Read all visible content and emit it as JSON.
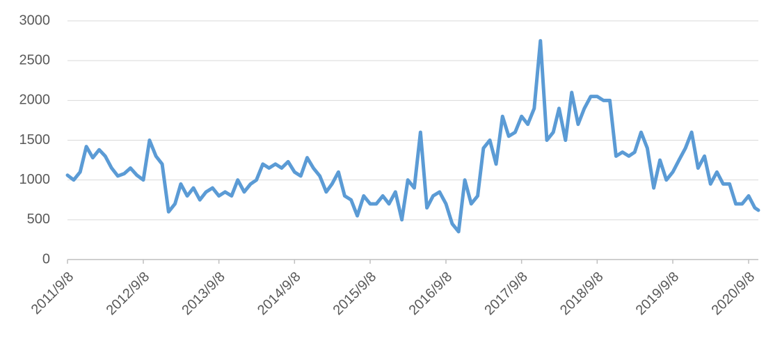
{
  "chart_data": {
    "type": "line",
    "x": [
      "2011/9/8",
      "2011/10/8",
      "2011/11/8",
      "2011/12/8",
      "2012/1/8",
      "2012/2/8",
      "2012/3/8",
      "2012/4/8",
      "2012/5/8",
      "2012/6/8",
      "2012/7/8",
      "2012/8/8",
      "2012/9/8",
      "2012/10/8",
      "2012/11/8",
      "2012/12/8",
      "2013/1/8",
      "2013/2/8",
      "2013/3/8",
      "2013/4/8",
      "2013/5/8",
      "2013/6/8",
      "2013/7/8",
      "2013/8/8",
      "2013/9/8",
      "2013/10/8",
      "2013/11/8",
      "2013/12/8",
      "2014/1/8",
      "2014/2/8",
      "2014/3/8",
      "2014/4/8",
      "2014/5/8",
      "2014/6/8",
      "2014/7/8",
      "2014/8/8",
      "2014/9/8",
      "2014/10/8",
      "2014/11/8",
      "2014/12/8",
      "2015/1/8",
      "2015/2/8",
      "2015/3/8",
      "2015/4/8",
      "2015/5/8",
      "2015/6/8",
      "2015/7/8",
      "2015/8/8",
      "2015/9/8",
      "2015/10/8",
      "2015/11/8",
      "2015/12/8",
      "2016/1/8",
      "2016/2/8",
      "2016/3/8",
      "2016/4/8",
      "2016/5/8",
      "2016/6/8",
      "2016/7/8",
      "2016/8/8",
      "2016/9/8",
      "2016/10/8",
      "2016/11/8",
      "2016/12/8",
      "2017/1/8",
      "2017/2/8",
      "2017/3/8",
      "2017/4/8",
      "2017/5/8",
      "2017/6/8",
      "2017/7/8",
      "2017/8/8",
      "2017/9/8",
      "2017/10/8",
      "2017/11/8",
      "2017/12/8",
      "2018/1/8",
      "2018/2/8",
      "2018/3/8",
      "2018/4/8",
      "2018/5/8",
      "2018/6/8",
      "2018/7/8",
      "2018/8/8",
      "2018/9/8",
      "2018/10/8",
      "2018/11/8",
      "2018/12/8",
      "2019/1/8",
      "2019/2/8",
      "2019/3/8",
      "2019/4/8",
      "2019/5/8",
      "2019/6/8",
      "2019/7/8",
      "2019/8/8",
      "2019/9/8",
      "2019/10/8",
      "2019/11/8",
      "2019/12/8",
      "2020/1/8",
      "2020/2/8",
      "2020/3/8",
      "2020/4/8",
      "2020/5/8",
      "2020/6/8",
      "2020/7/8",
      "2020/8/8",
      "2020/9/8",
      "2020/10/8",
      "2020/10/25"
    ],
    "values": [
      1060,
      1000,
      1100,
      1420,
      1280,
      1380,
      1300,
      1150,
      1050,
      1080,
      1150,
      1060,
      1000,
      1500,
      1300,
      1200,
      600,
      700,
      950,
      800,
      900,
      750,
      850,
      900,
      800,
      850,
      800,
      1000,
      850,
      950,
      1000,
      1200,
      1150,
      1200,
      1150,
      1230,
      1100,
      1050,
      1280,
      1150,
      1050,
      850,
      950,
      1100,
      800,
      750,
      550,
      800,
      700,
      700,
      800,
      700,
      850,
      500,
      1000,
      900,
      1600,
      650,
      800,
      850,
      700,
      450,
      350,
      1000,
      700,
      800,
      1400,
      1500,
      1200,
      1800,
      1550,
      1600,
      1800,
      1700,
      1900,
      2750,
      1500,
      1600,
      1900,
      1500,
      2100,
      1700,
      1900,
      2050,
      2050,
      2000,
      2000,
      1300,
      1350,
      1300,
      1350,
      1600,
      1400,
      900,
      1250,
      1000,
      1100,
      1250,
      1400,
      1600,
      1150,
      1300,
      950,
      1100,
      950,
      950,
      700,
      700,
      800,
      650,
      620
    ],
    "color": "#5b9bd5",
    "xlim": [
      "2011/9/8",
      "2020/10/25"
    ],
    "xticks": [
      "2011/9/8",
      "2012/9/8",
      "2013/9/8",
      "2014/9/8",
      "2015/9/8",
      "2016/9/8",
      "2017/9/8",
      "2018/9/8",
      "2019/9/8",
      "2020/9/8"
    ],
    "ylim": [
      0,
      3000
    ],
    "yticks": [
      0,
      500,
      1000,
      1500,
      2000,
      2500,
      3000
    ],
    "grid": true
  }
}
